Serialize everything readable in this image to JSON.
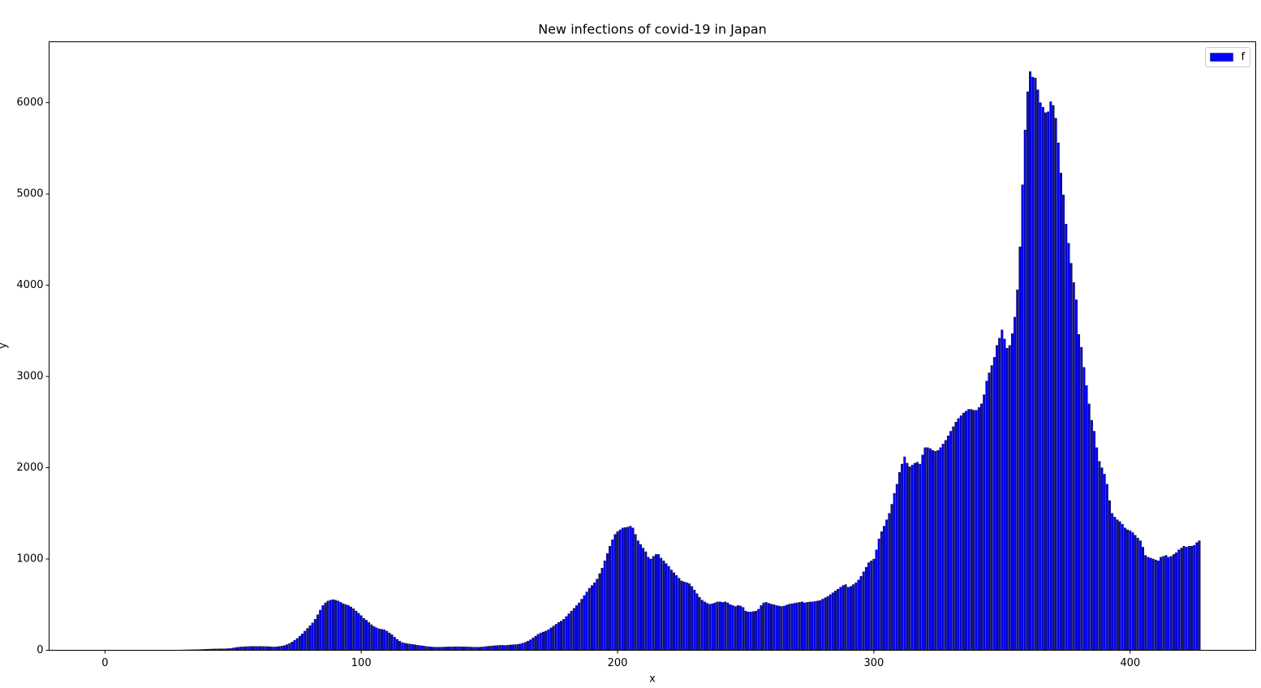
{
  "chart_data": {
    "type": "bar",
    "title": "New infections of covid-19 in Japan",
    "x_label": "x",
    "y_label": "y",
    "legend_position": "upper right",
    "series": [
      {
        "name": "f",
        "color": "#0000ff",
        "edgecolor": "#000000",
        "x": [
          0,
          1,
          2,
          3,
          4,
          5,
          6,
          7,
          8,
          9,
          10,
          11,
          12,
          13,
          14,
          15,
          16,
          17,
          18,
          19,
          20,
          21,
          22,
          23,
          24,
          25,
          26,
          27,
          28,
          29,
          30,
          31,
          32,
          33,
          34,
          35,
          36,
          37,
          38,
          39,
          40,
          41,
          42,
          43,
          44,
          45,
          46,
          47,
          48,
          49,
          50,
          51,
          52,
          53,
          54,
          55,
          56,
          57,
          58,
          59,
          60,
          61,
          62,
          63,
          64,
          65,
          66,
          67,
          68,
          69,
          70,
          71,
          72,
          73,
          74,
          75,
          76,
          77,
          78,
          79,
          80,
          81,
          82,
          83,
          84,
          85,
          86,
          87,
          88,
          89,
          90,
          91,
          92,
          93,
          94,
          95,
          96,
          97,
          98,
          99,
          100,
          101,
          102,
          103,
          104,
          105,
          106,
          107,
          108,
          109,
          110,
          111,
          112,
          113,
          114,
          115,
          116,
          117,
          118,
          119,
          120,
          121,
          122,
          123,
          124,
          125,
          126,
          127,
          128,
          129,
          130,
          131,
          132,
          133,
          134,
          135,
          136,
          137,
          138,
          139,
          140,
          141,
          142,
          143,
          144,
          145,
          146,
          147,
          148,
          149,
          150,
          151,
          152,
          153,
          154,
          155,
          156,
          157,
          158,
          159,
          160,
          161,
          162,
          163,
          164,
          165,
          166,
          167,
          168,
          169,
          170,
          171,
          172,
          173,
          174,
          175,
          176,
          177,
          178,
          179,
          180,
          181,
          182,
          183,
          184,
          185,
          186,
          187,
          188,
          189,
          190,
          191,
          192,
          193,
          194,
          195,
          196,
          197,
          198,
          199,
          200,
          201,
          202,
          203,
          204,
          205,
          206,
          207,
          208,
          209,
          210,
          211,
          212,
          213,
          214,
          215,
          216,
          217,
          218,
          219,
          220,
          221,
          222,
          223,
          224,
          225,
          226,
          227,
          228,
          229,
          230,
          231,
          232,
          233,
          234,
          235,
          236,
          237,
          238,
          239,
          240,
          241,
          242,
          243,
          244,
          245,
          246,
          247,
          248,
          249,
          250,
          251,
          252,
          253,
          254,
          255,
          256,
          257,
          258,
          259,
          260,
          261,
          262,
          263,
          264,
          265,
          266,
          267,
          268,
          269,
          270,
          271,
          272,
          273,
          274,
          275,
          276,
          277,
          278,
          279,
          280,
          281,
          282,
          283,
          284,
          285,
          286,
          287,
          288,
          289,
          290,
          291,
          292,
          293,
          294,
          295,
          296,
          297,
          298,
          299,
          300,
          301,
          302,
          303,
          304,
          305,
          306,
          307,
          308,
          309,
          310,
          311,
          312,
          313,
          314,
          315,
          316,
          317,
          318,
          319,
          320,
          321,
          322,
          323,
          324,
          325,
          326,
          327,
          328,
          329,
          330,
          331,
          332,
          333,
          334,
          335,
          336,
          337,
          338,
          339,
          340,
          341,
          342,
          343,
          344,
          345,
          346,
          347,
          348,
          349,
          350,
          351,
          352,
          353,
          354,
          355,
          356,
          357,
          358,
          359,
          360,
          361,
          362,
          363,
          364,
          365,
          366,
          367,
          368,
          369,
          370,
          371,
          372,
          373,
          374,
          375,
          376,
          377,
          378,
          379,
          380,
          381,
          382,
          383,
          384,
          385,
          386,
          387,
          388,
          389,
          390,
          391,
          392,
          393,
          394,
          395,
          396,
          397,
          398,
          399,
          400,
          401,
          402,
          403,
          404,
          405,
          406,
          407,
          408,
          409,
          410,
          411,
          412,
          413,
          414,
          415,
          416,
          417,
          418,
          419,
          420,
          421,
          422,
          423,
          424,
          425,
          426,
          427
        ],
        "values": [
          0,
          0,
          0,
          0,
          0,
          0,
          0,
          0,
          0,
          0,
          0,
          0,
          0,
          0,
          0,
          0,
          0,
          0,
          0,
          0,
          0,
          0,
          0,
          0,
          0,
          0,
          0,
          0,
          0,
          0,
          3,
          4,
          5,
          5,
          6,
          6,
          7,
          8,
          9,
          10,
          12,
          13,
          14,
          15,
          15,
          16,
          16,
          17,
          18,
          20,
          25,
          30,
          33,
          36,
          38,
          40,
          41,
          42,
          42,
          42,
          42,
          42,
          41,
          41,
          40,
          38,
          36,
          38,
          42,
          46,
          52,
          62,
          75,
          90,
          110,
          130,
          155,
          180,
          210,
          240,
          270,
          300,
          340,
          390,
          440,
          490,
          520,
          540,
          550,
          555,
          550,
          540,
          525,
          510,
          500,
          490,
          475,
          455,
          430,
          405,
          380,
          350,
          330,
          305,
          280,
          260,
          245,
          235,
          230,
          225,
          210,
          190,
          170,
          145,
          120,
          100,
          85,
          78,
          72,
          68,
          64,
          60,
          56,
          52,
          48,
          44,
          40,
          37,
          35,
          34,
          34,
          34,
          35,
          36,
          37,
          38,
          38,
          39,
          39,
          38,
          38,
          37,
          36,
          35,
          34,
          34,
          34,
          36,
          38,
          42,
          45,
          48,
          50,
          52,
          54,
          55,
          53,
          55,
          58,
          60,
          62,
          65,
          70,
          78,
          88,
          100,
          115,
          135,
          155,
          175,
          190,
          200,
          210,
          225,
          245,
          265,
          285,
          305,
          320,
          340,
          370,
          400,
          430,
          460,
          490,
          520,
          560,
          600,
          640,
          680,
          710,
          740,
          780,
          840,
          900,
          980,
          1060,
          1140,
          1210,
          1270,
          1300,
          1320,
          1340,
          1345,
          1350,
          1360,
          1340,
          1270,
          1200,
          1160,
          1120,
          1080,
          1020,
          1000,
          1030,
          1050,
          1050,
          1010,
          980,
          950,
          920,
          880,
          850,
          820,
          790,
          760,
          750,
          740,
          730,
          700,
          660,
          620,
          580,
          550,
          530,
          515,
          505,
          510,
          520,
          530,
          530,
          525,
          530,
          520,
          500,
          490,
          480,
          490,
          485,
          470,
          430,
          420,
          420,
          425,
          430,
          450,
          490,
          520,
          525,
          515,
          505,
          500,
          490,
          485,
          480,
          485,
          495,
          505,
          510,
          515,
          520,
          525,
          530,
          520,
          525,
          530,
          530,
          535,
          540,
          545,
          560,
          575,
          590,
          610,
          630,
          650,
          670,
          690,
          710,
          720,
          690,
          700,
          720,
          740,
          770,
          810,
          860,
          910,
          960,
          980,
          1000,
          1100,
          1220,
          1300,
          1360,
          1430,
          1500,
          1600,
          1720,
          1820,
          1950,
          2040,
          2120,
          2050,
          2010,
          2030,
          2050,
          2060,
          2040,
          2140,
          2220,
          2220,
          2210,
          2190,
          2180,
          2190,
          2220,
          2260,
          2300,
          2350,
          2400,
          2450,
          2500,
          2540,
          2570,
          2600,
          2620,
          2640,
          2640,
          2630,
          2630,
          2660,
          2700,
          2800,
          2950,
          3040,
          3120,
          3210,
          3340,
          3420,
          3510,
          3410,
          3310,
          3340,
          3470,
          3650,
          3950,
          4420,
          5100,
          5700,
          6120,
          6340,
          6280,
          6270,
          6140,
          6000,
          5950,
          5890,
          5900,
          6010,
          5970,
          5830,
          5560,
          5230,
          4990,
          4670,
          4460,
          4240,
          4030,
          3840,
          3460,
          3320,
          3100,
          2900,
          2700,
          2520,
          2400,
          2220,
          2070,
          2000,
          1930,
          1820,
          1640,
          1500,
          1460,
          1430,
          1410,
          1380,
          1340,
          1320,
          1310,
          1290,
          1260,
          1230,
          1200,
          1130,
          1040,
          1020,
          1010,
          1000,
          990,
          980,
          1020,
          1030,
          1040,
          1020,
          1030,
          1050,
          1070,
          1100,
          1120,
          1140,
          1130,
          1140,
          1140,
          1150,
          1180,
          1200
        ]
      }
    ],
    "xlim": [
      -21.8,
      449
    ],
    "xticks": [
      0,
      100,
      200,
      300,
      400
    ],
    "ylim": [
      0,
      6667
    ],
    "yticks": [
      0,
      1000,
      2000,
      3000,
      4000,
      5000,
      6000
    ]
  }
}
